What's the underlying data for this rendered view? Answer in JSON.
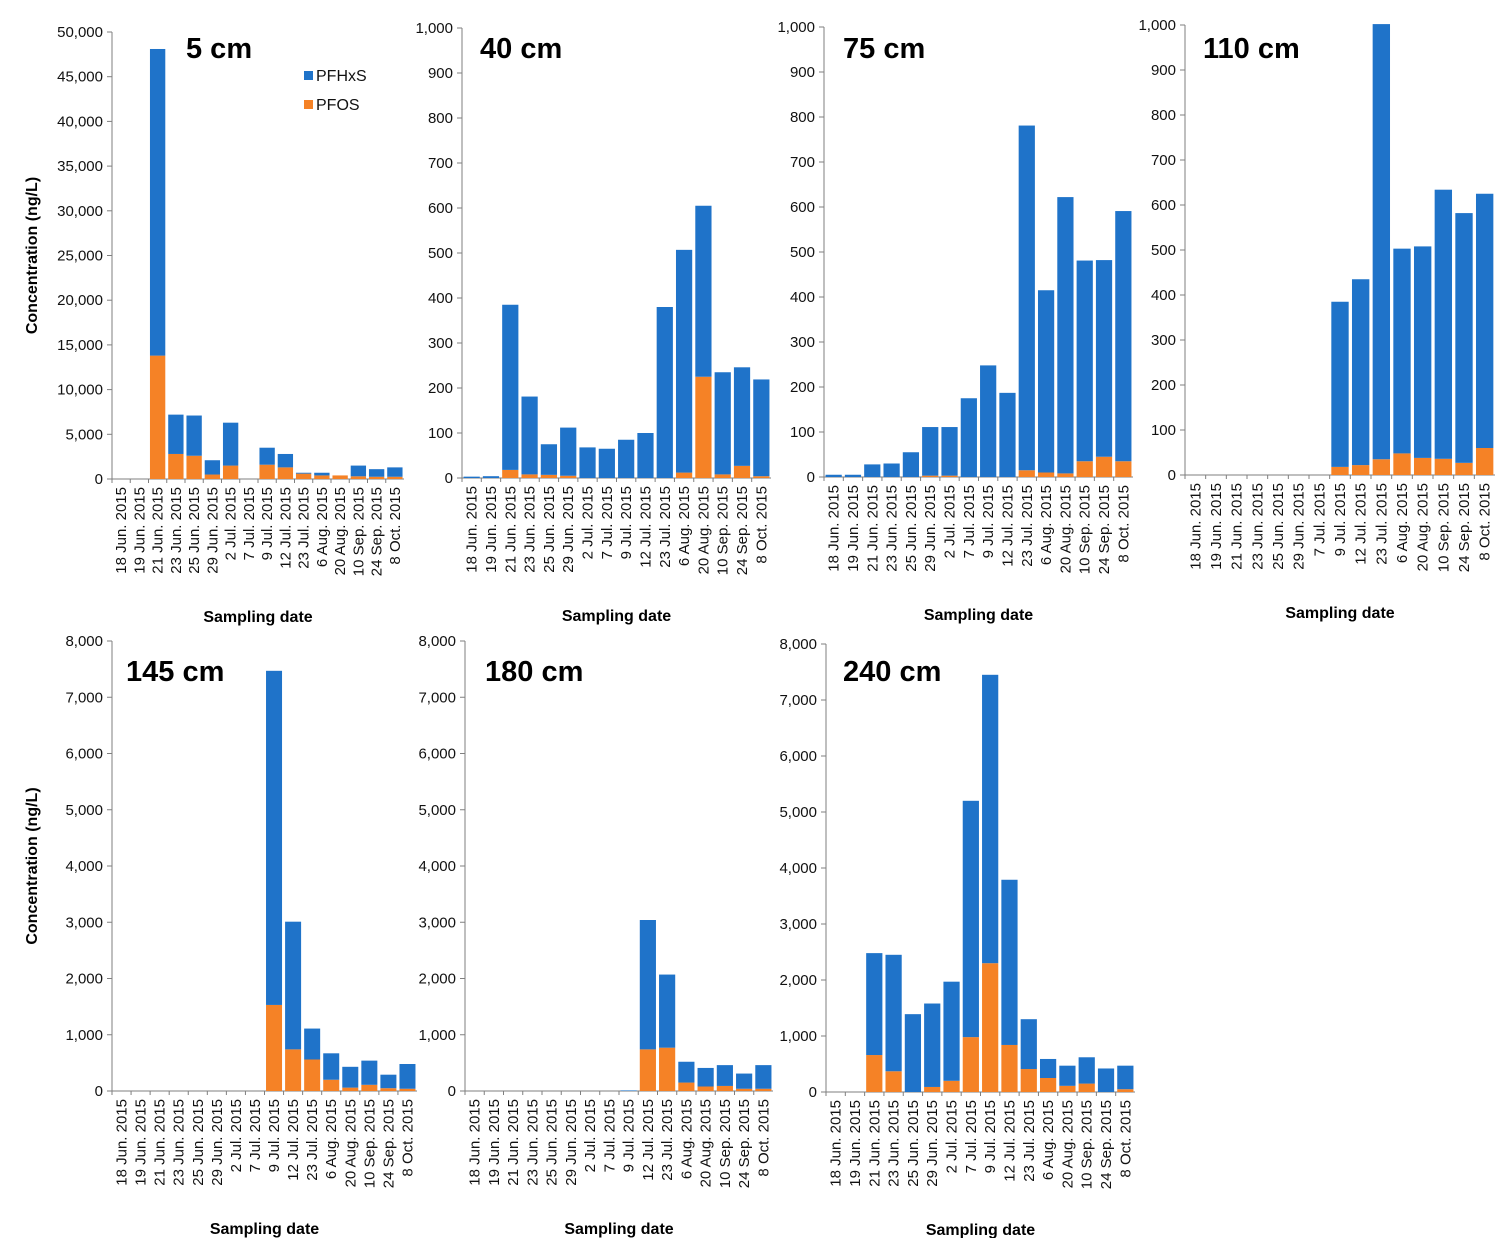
{
  "colors": {
    "pfhxs": "#1F73C9",
    "pfos": "#F58226",
    "axis": "#7F7F7F"
  },
  "legend": [
    {
      "name": "PFHxS",
      "color": "#1F73C9"
    },
    {
      "name": "PFOS",
      "color": "#F58226"
    }
  ],
  "chart_data": [
    {
      "type": "bar",
      "stacked": true,
      "title": "5 cm",
      "xlabel": "Sampling date",
      "ylabel": "Concentration (ng/L)",
      "ylim": [
        0,
        50000
      ],
      "yticks": [
        "0",
        "5,000",
        "10,000",
        "15,000",
        "20,000",
        "25,000",
        "30,000",
        "35,000",
        "40,000",
        "45,000",
        "50,000"
      ],
      "categories": [
        "18 Jun. 2015",
        "19 Jun. 2015",
        "21 Jun. 2015",
        "23 Jun. 2015",
        "25 Jun. 2015",
        "29 Jun. 2015",
        "2 Jul. 2015",
        "7 Jul. 2015",
        "9 Jul. 2015",
        "12 Jul. 2015",
        "23 Jul. 2015",
        "6 Aug. 2015",
        "20 Aug. 2015",
        "10 Sep. 2015",
        "24 Sep. 2015",
        "8 Oct. 2015"
      ],
      "series": [
        {
          "name": "PFOS",
          "values": [
            0,
            0,
            13800,
            2800,
            2600,
            500,
            1500,
            0,
            1600,
            1300,
            600,
            400,
            400,
            300,
            250,
            250
          ]
        },
        {
          "name": "PFHxS",
          "values": [
            0,
            0,
            34300,
            4400,
            4500,
            1600,
            4800,
            0,
            1900,
            1500,
            100,
            300,
            0,
            1200,
            850,
            1050
          ]
        }
      ]
    },
    {
      "type": "bar",
      "stacked": true,
      "title": "40 cm",
      "xlabel": "Sampling date",
      "ylabel": "",
      "ylim": [
        0,
        1000
      ],
      "yticks": [
        "0",
        "100",
        "200",
        "300",
        "400",
        "500",
        "600",
        "700",
        "800",
        "900",
        "1,000"
      ],
      "categories": [
        "18 Jun. 2015",
        "19 Jun. 2015",
        "21 Jun. 2015",
        "23 Jun. 2015",
        "25 Jun. 2015",
        "29 Jun. 2015",
        "2 Jul. 2015",
        "7 Jul. 2015",
        "9 Jul. 2015",
        "12 Jul. 2015",
        "23 Jul. 2015",
        "6 Aug. 2015",
        "20 Aug. 2015",
        "10 Sep. 2015",
        "24 Sep. 2015",
        "8 Oct. 2015"
      ],
      "series": [
        {
          "name": "PFOS",
          "values": [
            0,
            0,
            18,
            8,
            7,
            5,
            0,
            0,
            0,
            0,
            0,
            12,
            225,
            8,
            27,
            4
          ]
        },
        {
          "name": "PFHxS",
          "values": [
            3,
            4,
            367,
            173,
            68,
            107,
            68,
            65,
            85,
            100,
            380,
            495,
            380,
            227,
            219,
            215
          ]
        }
      ]
    },
    {
      "type": "bar",
      "stacked": true,
      "title": "75 cm",
      "xlabel": "Sampling date",
      "ylabel": "",
      "ylim": [
        0,
        1000
      ],
      "yticks": [
        "0",
        "100",
        "200",
        "300",
        "400",
        "500",
        "600",
        "700",
        "800",
        "900",
        "1,000"
      ],
      "categories": [
        "18 Jun. 2015",
        "19 Jun. 2015",
        "21 Jun. 2015",
        "23 Jun. 2015",
        "25 Jun. 2015",
        "29 Jun. 2015",
        "2 Jul. 2015",
        "7 Jul. 2015",
        "9 Jul. 2015",
        "12 Jul. 2015",
        "23 Jul. 2015",
        "6 Aug. 2015",
        "20 Aug. 2015",
        "10 Sep. 2015",
        "24 Sep. 2015",
        "8 Oct. 2015"
      ],
      "series": [
        {
          "name": "PFOS",
          "values": [
            0,
            0,
            0,
            0,
            0,
            3,
            3,
            0,
            0,
            0,
            15,
            10,
            8,
            35,
            45,
            35
          ]
        },
        {
          "name": "PFHxS",
          "values": [
            5,
            5,
            28,
            30,
            55,
            108,
            108,
            175,
            248,
            187,
            766,
            405,
            614,
            446,
            437,
            556
          ]
        }
      ]
    },
    {
      "type": "bar",
      "stacked": true,
      "title": "110 cm",
      "xlabel": "Sampling date",
      "ylabel": "",
      "ylim": [
        0,
        1000
      ],
      "yticks": [
        "0",
        "100",
        "200",
        "300",
        "400",
        "500",
        "600",
        "700",
        "800",
        "900",
        "1,000"
      ],
      "categories": [
        "18 Jun. 2015",
        "19 Jun. 2015",
        "21 Jun. 2015",
        "23 Jun. 2015",
        "25 Jun. 2015",
        "29 Jun. 2015",
        "7 Jul. 2015",
        "9 Jul. 2015",
        "12 Jul. 2015",
        "23 Jul. 2015",
        "6 Aug. 2015",
        "20 Aug. 2015",
        "10 Sep. 2015",
        "24 Sep. 2015",
        "8 Oct. 2015"
      ],
      "series": [
        {
          "name": "PFOS",
          "values": [
            0,
            0,
            0,
            0,
            0,
            0,
            0,
            18,
            22,
            35,
            48,
            38,
            36,
            27,
            60
          ]
        },
        {
          "name": "PFHxS",
          "values": [
            0,
            0,
            0,
            0,
            0,
            0,
            0,
            367,
            413,
            967,
            455,
            470,
            598,
            555,
            565
          ]
        }
      ]
    },
    {
      "type": "bar",
      "stacked": true,
      "title": "145 cm",
      "xlabel": "Sampling date",
      "ylabel": "Concentration (ng/L)",
      "ylim": [
        0,
        8000
      ],
      "yticks": [
        "0",
        "1,000",
        "2,000",
        "3,000",
        "4,000",
        "5,000",
        "6,000",
        "7,000",
        "8,000"
      ],
      "categories": [
        "18 Jun. 2015",
        "19 Jun. 2015",
        "21 Jun. 2015",
        "23 Jun. 2015",
        "25 Jun. 2015",
        "29 Jun. 2015",
        "2 Jul. 2015",
        "7 Jul. 2015",
        "9 Jul. 2015",
        "12 Jul. 2015",
        "23 Jul. 2015",
        "6 Aug. 2015",
        "20 Aug. 2015",
        "10 Sep. 2015",
        "24 Sep. 2015",
        "8 Oct. 2015"
      ],
      "series": [
        {
          "name": "PFOS",
          "values": [
            0,
            0,
            0,
            0,
            0,
            0,
            0,
            0,
            1530,
            740,
            560,
            200,
            60,
            110,
            50,
            40
          ]
        },
        {
          "name": "PFHxS",
          "values": [
            0,
            0,
            0,
            0,
            0,
            0,
            0,
            0,
            5940,
            2270,
            550,
            470,
            370,
            430,
            240,
            440
          ]
        }
      ]
    },
    {
      "type": "bar",
      "stacked": true,
      "title": "180 cm",
      "xlabel": "Sampling date",
      "ylabel": "",
      "ylim": [
        0,
        8000
      ],
      "yticks": [
        "0",
        "1,000",
        "2,000",
        "3,000",
        "4,000",
        "5,000",
        "6,000",
        "7,000",
        "8,000"
      ],
      "categories": [
        "18 Jun. 2015",
        "19 Jun. 2015",
        "21 Jun. 2015",
        "23 Jun. 2015",
        "25 Jun. 2015",
        "29 Jun. 2015",
        "2 Jul. 2015",
        "7 Jul. 2015",
        "9 Jul. 2015",
        "12 Jul. 2015",
        "23 Jul. 2015",
        "6 Aug. 2015",
        "20 Aug. 2015",
        "10 Sep. 2015",
        "24 Sep. 2015",
        "8 Oct. 2015"
      ],
      "series": [
        {
          "name": "PFOS",
          "values": [
            0,
            0,
            0,
            0,
            0,
            0,
            0,
            0,
            0,
            740,
            770,
            150,
            80,
            90,
            40,
            40
          ]
        },
        {
          "name": "PFHxS",
          "values": [
            0,
            0,
            0,
            0,
            0,
            0,
            0,
            0,
            10,
            2300,
            1300,
            370,
            330,
            370,
            270,
            420
          ]
        }
      ]
    },
    {
      "type": "bar",
      "stacked": true,
      "title": "240 cm",
      "xlabel": "Sampling date",
      "ylabel": "",
      "ylim": [
        0,
        8000
      ],
      "yticks": [
        "0",
        "1,000",
        "2,000",
        "3,000",
        "4,000",
        "5,000",
        "6,000",
        "7,000",
        "8,000"
      ],
      "categories": [
        "18 Jun. 2015",
        "19 Jun. 2015",
        "21 Jun. 2015",
        "23 Jun. 2015",
        "25 Jun. 2015",
        "29 Jun. 2015",
        "2 Jul. 2015",
        "7 Jul. 2015",
        "9 Jul. 2015",
        "12 Jul. 2015",
        "23 Jul. 2015",
        "6 Aug. 2015",
        "20 Aug. 2015",
        "10 Sep. 2015",
        "24 Sep. 2015",
        "8 Oct. 2015"
      ],
      "series": [
        {
          "name": "PFOS",
          "values": [
            0,
            0,
            660,
            370,
            0,
            90,
            200,
            980,
            2300,
            840,
            410,
            250,
            110,
            150,
            0,
            50
          ]
        },
        {
          "name": "PFHxS",
          "values": [
            0,
            0,
            1820,
            2080,
            1390,
            1490,
            1770,
            4220,
            5150,
            2950,
            890,
            340,
            360,
            470,
            420,
            420
          ]
        }
      ]
    }
  ]
}
